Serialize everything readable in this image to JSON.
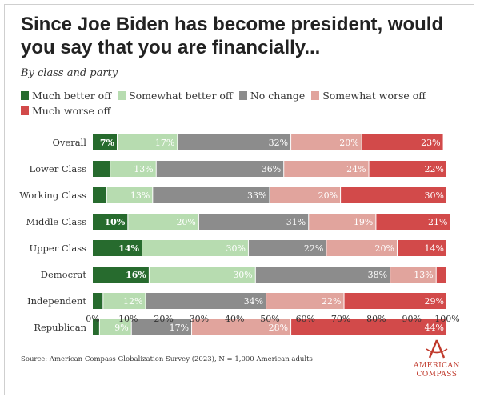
{
  "header": {
    "title": "Since Joe Biden has become president, would you say that you are financially...",
    "subtitle": "By class and party"
  },
  "footer": {
    "source": "Source: American Compass Globalization Survey (2023), N = 1,000 American adults",
    "logo_line1": "AMERICAN",
    "logo_line2": "COMPASS"
  },
  "colors": {
    "much_better": "#276b2e",
    "somewhat_better": "#b7dcb0",
    "no_change": "#8c8c8c",
    "somewhat_worse": "#e1a49d",
    "much_worse": "#d24a4a",
    "brand": "#c0392b"
  },
  "chart_data": {
    "type": "bar",
    "orientation": "horizontal",
    "stacked": true,
    "title": "Since Joe Biden has become president, would you say that you are financially...",
    "subtitle": "By class and party",
    "legend_position": "top",
    "xlim": [
      0,
      100
    ],
    "x_ticks": [
      "0%",
      "10%",
      "20%",
      "30%",
      "40%",
      "50%",
      "60%",
      "70%",
      "80%",
      "90%",
      "100%"
    ],
    "categories": [
      "Overall",
      "Lower Class",
      "Working Class",
      "Middle Class",
      "Upper Class",
      "Democrat",
      "Independent",
      "Republican"
    ],
    "series": [
      {
        "name": "Much better off",
        "color": "#276b2e",
        "values": [
          7,
          5,
          4,
          10,
          14,
          16,
          3,
          2
        ]
      },
      {
        "name": "Somewhat better off",
        "color": "#b7dcb0",
        "values": [
          17,
          13,
          13,
          20,
          30,
          30,
          12,
          9
        ]
      },
      {
        "name": "No change",
        "color": "#8c8c8c",
        "values": [
          32,
          36,
          33,
          31,
          22,
          38,
          34,
          17
        ]
      },
      {
        "name": "Somewhat worse off",
        "color": "#e1a49d",
        "values": [
          20,
          24,
          20,
          19,
          20,
          13,
          22,
          28
        ]
      },
      {
        "name": "Much worse off",
        "color": "#d24a4a",
        "values": [
          23,
          22,
          30,
          21,
          14,
          3,
          29,
          44
        ]
      }
    ],
    "labels": [
      [
        "7%",
        "",
        "",
        "10%",
        "14%",
        "16%",
        "",
        ""
      ],
      [
        "17%",
        "13%",
        "13%",
        "20%",
        "30%",
        "30%",
        "12%",
        "9%"
      ],
      [
        "32%",
        "36%",
        "33%",
        "31%",
        "22%",
        "38%",
        "34%",
        "17%"
      ],
      [
        "20%",
        "24%",
        "20%",
        "19%",
        "20%",
        "13%",
        "22%",
        "28%"
      ],
      [
        "23%",
        "22%",
        "30%",
        "21%",
        "14%",
        "",
        "29%",
        "44%"
      ]
    ]
  }
}
